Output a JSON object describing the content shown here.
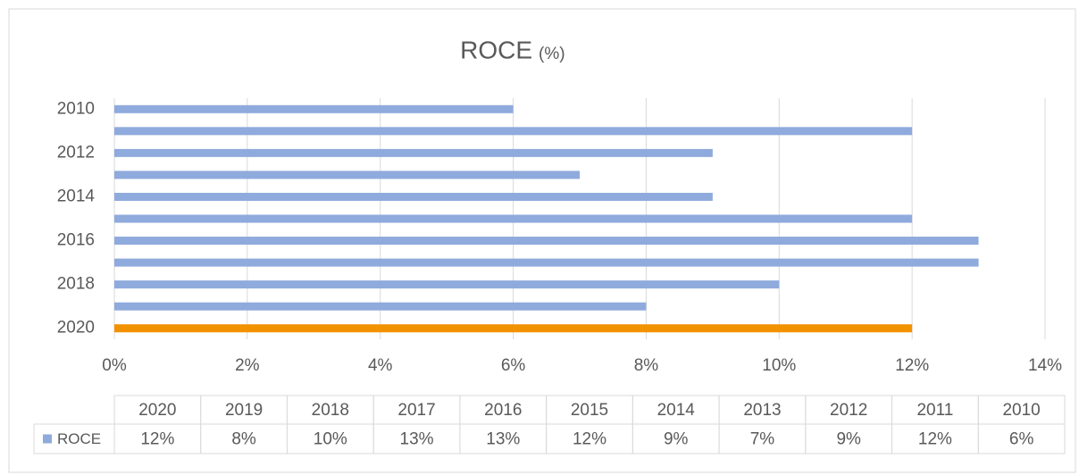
{
  "chart_data": {
    "type": "bar",
    "orientation": "horizontal",
    "title": "ROCE",
    "title_unit": "(%)",
    "categories": [
      "2010",
      "2011",
      "2012",
      "2013",
      "2014",
      "2015",
      "2016",
      "2017",
      "2018",
      "2019",
      "2020"
    ],
    "series": [
      {
        "name": "ROCE",
        "color": "#8faadc",
        "values": [
          6,
          12,
          9,
          7,
          9,
          12,
          13,
          13,
          10,
          8,
          12
        ],
        "value_labels": [
          "6%",
          "12%",
          "9%",
          "7%",
          "9%",
          "12%",
          "13%",
          "13%",
          "10%",
          "8%",
          "12%"
        ],
        "colors": [
          "#8faadc",
          "#8faadc",
          "#8faadc",
          "#8faadc",
          "#8faadc",
          "#8faadc",
          "#8faadc",
          "#8faadc",
          "#8faadc",
          "#8faadc",
          "#f39200"
        ]
      }
    ],
    "xlim": [
      0,
      14
    ],
    "xticks": [
      {
        "value": 0,
        "label": "0%"
      },
      {
        "value": 2,
        "label": "2%"
      },
      {
        "value": 4,
        "label": "4%"
      },
      {
        "value": 6,
        "label": "6%"
      },
      {
        "value": 8,
        "label": "8%"
      },
      {
        "value": 10,
        "label": "10%"
      },
      {
        "value": 12,
        "label": "12%"
      },
      {
        "value": 14,
        "label": "14%"
      }
    ],
    "grid": true,
    "data_table": true
  }
}
